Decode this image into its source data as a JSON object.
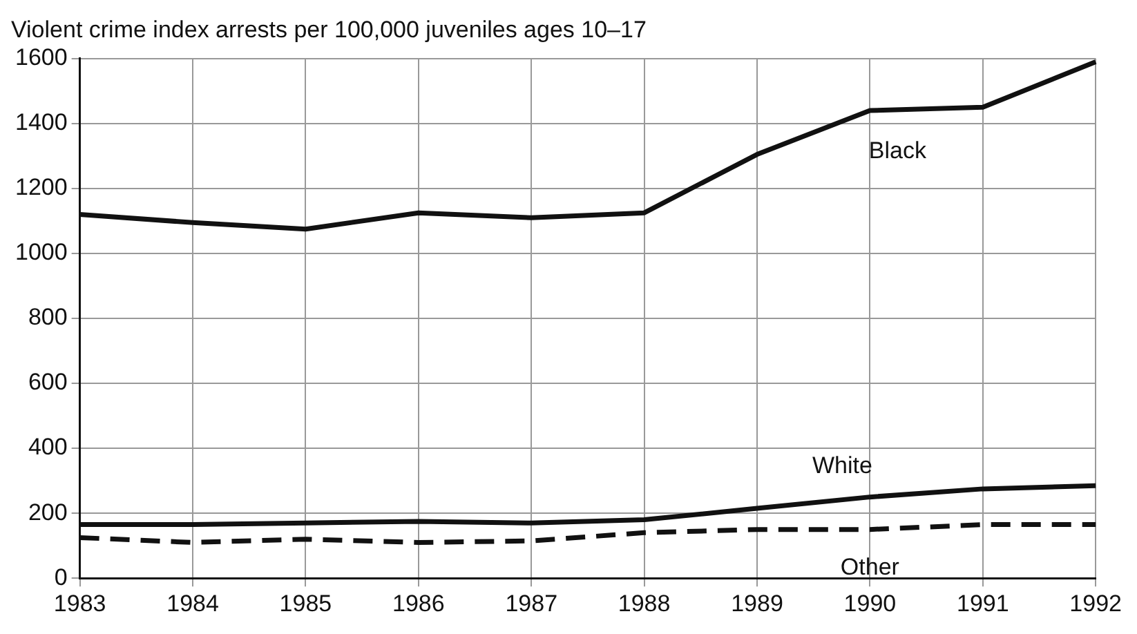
{
  "chart_data": {
    "type": "line",
    "title": "Violent crime index arrests per 100,000 juveniles ages 10–17",
    "categories": [
      "1983",
      "1984",
      "1985",
      "1986",
      "1987",
      "1988",
      "1989",
      "1990",
      "1991",
      "1992"
    ],
    "series": [
      {
        "name": "Black",
        "color": "#111111",
        "line_style": "solid",
        "values": [
          1120,
          1095,
          1075,
          1125,
          1110,
          1125,
          1305,
          1440,
          1450,
          1590
        ]
      },
      {
        "name": "White",
        "color": "#111111",
        "line_style": "solid",
        "values": [
          165,
          165,
          170,
          175,
          170,
          180,
          215,
          250,
          275,
          285
        ]
      },
      {
        "name": "Other",
        "color": "#111111",
        "line_style": "dashed",
        "values": [
          125,
          110,
          120,
          110,
          115,
          140,
          150,
          150,
          165,
          165
        ]
      }
    ],
    "ylim": [
      0,
      1600
    ],
    "yticks": [
      0,
      200,
      400,
      600,
      800,
      1000,
      1200,
      1400,
      1600
    ],
    "grid": true,
    "legend": false,
    "marker": "none"
  }
}
